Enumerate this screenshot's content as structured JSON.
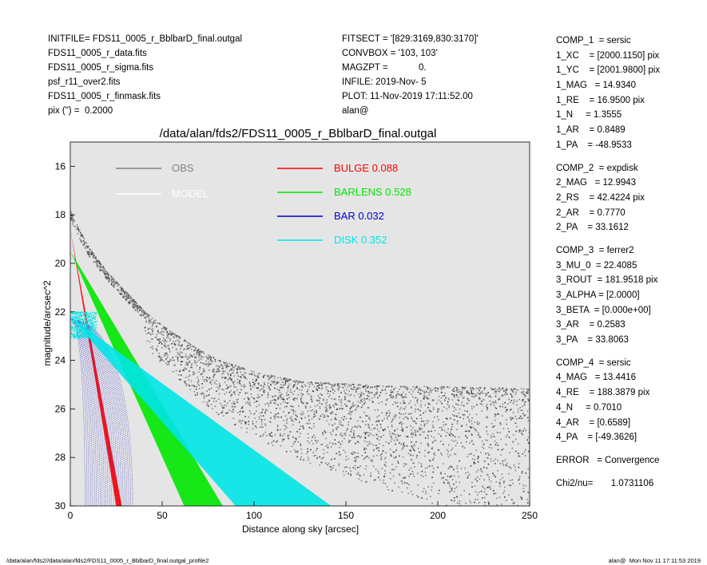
{
  "header_left": [
    "INITFILE= FDS11_0005_r_BblbarD_final.outgal",
    "FDS11_0005_r_data.fits",
    "FDS11_0005_r_sigma.fits",
    "psf_r11_over2.fits",
    "FDS11_0005_r_finmask.fits",
    "pix (\") =  0.2000"
  ],
  "header_mid": [
    "FITSECT = '[829:3169,830:3170]'",
    "CONVBOX = '103, 103'",
    "MAGZPT =            0.",
    "INFILE: 2019-Nov- 5",
    "PLOT: 11-Nov-2019 17:11:52.00",
    "alan@"
  ],
  "params": [
    "COMP_1  = sersic",
    "1_XC    = [2000.1150] pix",
    "1_YC    = [2001.9800] pix",
    "1_MAG   = 14.9340",
    "1_RE    = 16.9500 pix",
    "1_N     = 1.3555",
    "1_AR    = 0.8489",
    "1_PA    = -48.9533",
    "",
    "COMP_2  = expdisk",
    "2_MAG   = 12.9943",
    "2_RS    = 42.4224 pix",
    "2_AR    = 0.7770",
    "2_PA    = 33.1612",
    "",
    "COMP_3  = ferrer2",
    "3_MU_0  = 22.4085",
    "3_ROUT  = 181.9518 pix",
    "3_ALPHA = [2.0000]",
    "3_BETA  = [0.000e+00]",
    "3_AR    = 0.2583",
    "3_PA    = 33.8063",
    "",
    "COMP_4  = sersic",
    "4_MAG   = 13.4416",
    "4_RE    = 188.3879 pix",
    "4_N     = 0.7010",
    "4_AR    = [0.6589]",
    "4_PA    = [-49.3626]",
    "",
    "ERROR   = Convergence",
    "",
    "Chi2/nu=       1.0731106"
  ],
  "footer_left": "/data/alan/fds2//data/alan/fds2/FDS11_0005_r_BblbarD_final.outgal_profile2",
  "footer_right": "alan@  Mon Nov 11 17:11:53 2019",
  "chart_data": {
    "type": "scatter",
    "title": "/data/alan/fds2/FDS11_0005_r_BblbarD_final.outgal",
    "xlabel": "Distance along sky [arcsec]",
    "ylabel": "magnitude/arcsec^2",
    "xlim": [
      0,
      250
    ],
    "ylim": [
      30,
      15
    ],
    "y_inverted": true,
    "background_color": "#e5e5e5",
    "x_ticks": [
      0,
      50,
      100,
      150,
      200,
      250
    ],
    "y_ticks": [
      16,
      18,
      20,
      22,
      24,
      26,
      28,
      30
    ],
    "legend_placement": "top",
    "legend": [
      {
        "label": "OBS",
        "color": "#808080"
      },
      {
        "label": "MODEL",
        "color": "#ffffff"
      },
      {
        "label": "BULGE  0.088",
        "color": "#ff0000"
      },
      {
        "label": "BARLENS  0.528",
        "color": "#00e600"
      },
      {
        "label": "BAR  0.032",
        "color": "#0000cc"
      },
      {
        "label": "DISK  0.352",
        "color": "#00e5e5"
      }
    ],
    "series": [
      {
        "name": "OBS",
        "color": "#808080",
        "kind": "points",
        "profile": {
          "x": [
            0,
            5,
            10,
            20,
            30,
            40,
            50,
            60,
            70,
            80,
            100,
            125,
            150,
            175,
            200,
            250
          ],
          "y": [
            18.1,
            18.9,
            19.6,
            20.6,
            21.4,
            22.2,
            22.8,
            23.3,
            23.8,
            24.2,
            24.7,
            25.1,
            25.2,
            25.3,
            25.3,
            25.4
          ]
        }
      },
      {
        "name": "BULGE",
        "color": "#ff0000",
        "kind": "band",
        "upper": {
          "x": [
            0,
            25
          ],
          "y": [
            18.6,
            30
          ]
        },
        "lower": {
          "x": [
            0,
            28
          ],
          "y": [
            18.6,
            30
          ]
        }
      },
      {
        "name": "BARLENS",
        "color": "#00e600",
        "kind": "band",
        "upper": {
          "x": [
            0,
            62
          ],
          "y": [
            19.5,
            30
          ]
        },
        "lower": {
          "x": [
            0,
            83
          ],
          "y": [
            19.5,
            30
          ]
        }
      },
      {
        "name": "BAR",
        "color": "#0000cc",
        "kind": "arcs",
        "x_extent": [
          0,
          35
        ],
        "y_top": 22.3
      },
      {
        "name": "DISK",
        "color": "#00e5e5",
        "kind": "band",
        "upper": {
          "x": [
            0,
            90
          ],
          "y": [
            22.2,
            30
          ]
        },
        "lower": {
          "x": [
            0,
            142
          ],
          "y": [
            22.2,
            30
          ]
        }
      }
    ]
  }
}
